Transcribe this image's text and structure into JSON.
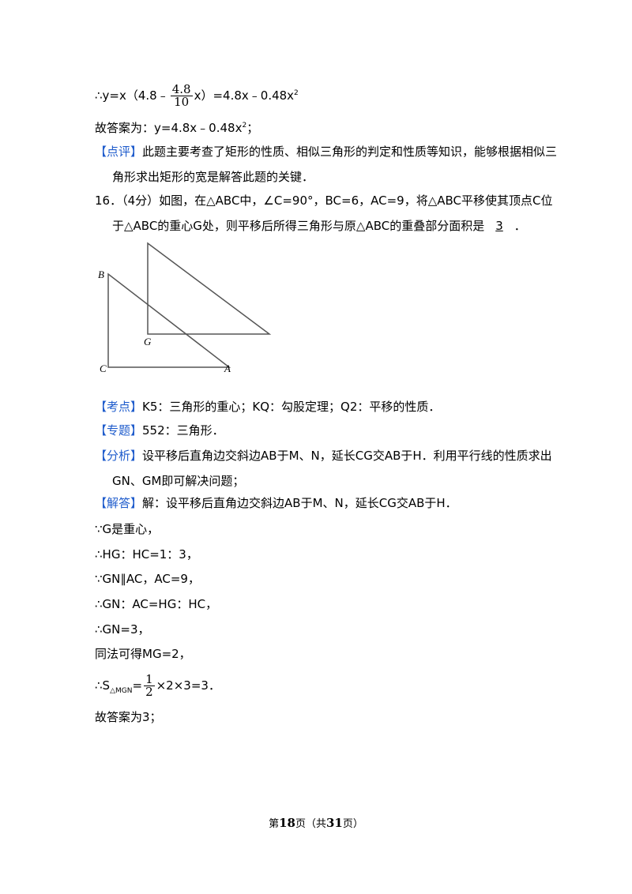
{
  "formula1": {
    "prefix": "∴y=x（4.8﹣",
    "num": "4.8",
    "den": "10",
    "suffix": "x）=4.8x﹣0.48x",
    "sup": "2"
  },
  "answer1": {
    "text": "故答案为：y=4.8x﹣0.48x",
    "sup": "2",
    "end": "；"
  },
  "comment": {
    "tag": "【点评】",
    "text": "此题主要考查了矩形的性质、相似三角形的判定和性质等知识，能够根据相似三角形求出矩形的宽是解答此题的关键．"
  },
  "question": {
    "text": "16．（4分）如图，在△ABC中，∠C=90°，BC=6，AC=9，将△ABC平移使其顶点C位于△ABC的重心G处，则平移后所得三角形与原△ABC的重叠部分面积是",
    "blank": "3",
    "end": "．"
  },
  "figure": {
    "labels": [
      "B",
      "G",
      "C",
      "A"
    ]
  },
  "kaodian": {
    "tag": "【考点】",
    "text": "K5：三角形的重心；KQ：勾股定理；Q2：平移的性质．"
  },
  "zhuanti": {
    "tag": "【专题】",
    "text": "552：三角形．"
  },
  "fenxi": {
    "tag": "【分析】",
    "text": "设平移后直角边交斜边AB于M、N，延长CG交AB于H．利用平行线的性质求出GN、GM即可解决问题；"
  },
  "jieda": {
    "tag": "【解答】",
    "text": "解：设平移后直角边交斜边AB于M、N，延长CG交AB于H．"
  },
  "steps": [
    "∵G是重心，",
    "∴HG：HC=1：3，",
    "∵GN∥AC，AC=9，",
    "∴GN：AC=HG：HC，",
    "∴GN=3，",
    "同法可得MG=2，"
  ],
  "formula2": {
    "prefix": "∴S",
    "sub": "△MGN",
    "eq": "=",
    "num": "1",
    "den": "2",
    "suffix": "×2×3=3．"
  },
  "final": "故答案为3；",
  "footer": {
    "pre": "第",
    "page": "18",
    "mid": "页（共",
    "total": "31",
    "post": "页）"
  }
}
